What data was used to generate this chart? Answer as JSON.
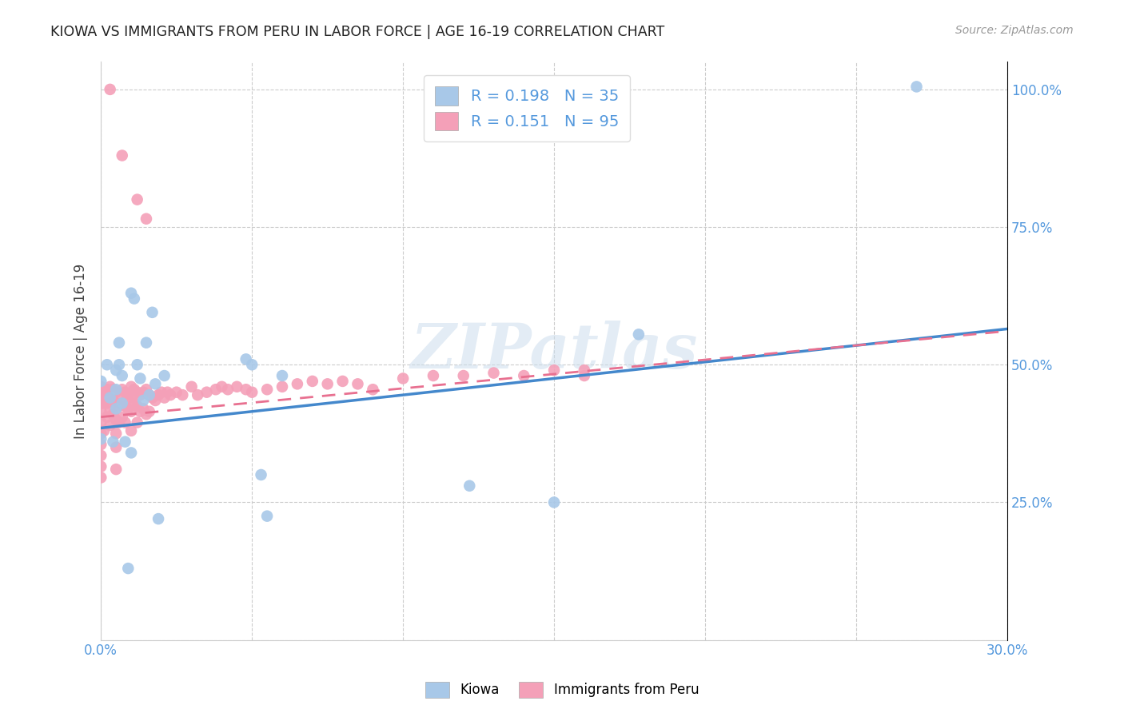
{
  "title": "KIOWA VS IMMIGRANTS FROM PERU IN LABOR FORCE | AGE 16-19 CORRELATION CHART",
  "source": "Source: ZipAtlas.com",
  "ylabel": "In Labor Force | Age 16-19",
  "xlim": [
    0.0,
    0.3
  ],
  "ylim": [
    0.0,
    1.05
  ],
  "ytick_positions": [
    0.0,
    0.25,
    0.5,
    0.75,
    1.0
  ],
  "ytick_labels": [
    "",
    "25.0%",
    "50.0%",
    "75.0%",
    "100.0%"
  ],
  "xtick_positions": [
    0.0,
    0.05,
    0.1,
    0.15,
    0.2,
    0.25,
    0.3
  ],
  "xtick_labels": [
    "0.0%",
    "",
    "",
    "",
    "",
    "",
    "30.0%"
  ],
  "watermark": "ZIPatlas",
  "legend_text1": "R = 0.198   N = 35",
  "legend_text2": "R = 0.151   N = 95",
  "color_kiowa": "#a8c8e8",
  "color_peru": "#f4a0b8",
  "line_color_kiowa": "#4488cc",
  "line_color_peru": "#e87090",
  "background_color": "#ffffff",
  "grid_color": "#cccccc",
  "title_color": "#222222",
  "tick_color": "#5599dd",
  "kiowa_x": [
    0.0,
    0.0,
    0.002,
    0.003,
    0.004,
    0.005,
    0.005,
    0.005,
    0.006,
    0.006,
    0.007,
    0.007,
    0.008,
    0.009,
    0.01,
    0.01,
    0.011,
    0.012,
    0.013,
    0.014,
    0.015,
    0.016,
    0.017,
    0.018,
    0.019,
    0.021,
    0.048,
    0.05,
    0.053,
    0.055,
    0.06,
    0.122,
    0.15,
    0.178,
    0.27
  ],
  "kiowa_y": [
    0.47,
    0.365,
    0.5,
    0.44,
    0.36,
    0.49,
    0.455,
    0.42,
    0.54,
    0.5,
    0.48,
    0.43,
    0.36,
    0.13,
    0.63,
    0.34,
    0.62,
    0.5,
    0.475,
    0.435,
    0.54,
    0.445,
    0.595,
    0.465,
    0.22,
    0.48,
    0.51,
    0.5,
    0.3,
    0.225,
    0.48,
    0.28,
    0.25,
    0.555,
    1.005
  ],
  "peru_x": [
    0.0,
    0.0,
    0.0,
    0.0,
    0.0,
    0.0,
    0.0,
    0.0,
    0.0,
    0.0,
    0.001,
    0.001,
    0.001,
    0.002,
    0.002,
    0.002,
    0.003,
    0.003,
    0.003,
    0.003,
    0.004,
    0.004,
    0.004,
    0.005,
    0.005,
    0.005,
    0.005,
    0.005,
    0.005,
    0.006,
    0.006,
    0.006,
    0.007,
    0.007,
    0.007,
    0.008,
    0.008,
    0.008,
    0.009,
    0.009,
    0.01,
    0.01,
    0.01,
    0.01,
    0.011,
    0.011,
    0.012,
    0.012,
    0.012,
    0.013,
    0.013,
    0.014,
    0.014,
    0.015,
    0.015,
    0.016,
    0.016,
    0.017,
    0.018,
    0.019,
    0.02,
    0.021,
    0.022,
    0.023,
    0.025,
    0.027,
    0.03,
    0.032,
    0.035,
    0.038,
    0.04,
    0.042,
    0.045,
    0.048,
    0.05,
    0.055,
    0.06,
    0.065,
    0.07,
    0.075,
    0.08,
    0.085,
    0.09,
    0.1,
    0.11,
    0.12,
    0.13,
    0.14,
    0.15,
    0.16,
    0.003,
    0.007,
    0.012,
    0.015,
    0.16
  ],
  "peru_y": [
    0.46,
    0.445,
    0.43,
    0.415,
    0.395,
    0.375,
    0.355,
    0.335,
    0.315,
    0.295,
    0.45,
    0.43,
    0.38,
    0.455,
    0.43,
    0.405,
    0.46,
    0.44,
    0.415,
    0.39,
    0.455,
    0.435,
    0.41,
    0.45,
    0.43,
    0.4,
    0.375,
    0.35,
    0.31,
    0.445,
    0.425,
    0.395,
    0.455,
    0.43,
    0.405,
    0.45,
    0.425,
    0.395,
    0.445,
    0.42,
    0.46,
    0.44,
    0.415,
    0.38,
    0.455,
    0.43,
    0.45,
    0.425,
    0.395,
    0.445,
    0.415,
    0.45,
    0.42,
    0.455,
    0.41,
    0.445,
    0.415,
    0.44,
    0.435,
    0.445,
    0.45,
    0.44,
    0.45,
    0.445,
    0.45,
    0.445,
    0.46,
    0.445,
    0.45,
    0.455,
    0.46,
    0.455,
    0.46,
    0.455,
    0.45,
    0.455,
    0.46,
    0.465,
    0.47,
    0.465,
    0.47,
    0.465,
    0.455,
    0.475,
    0.48,
    0.48,
    0.485,
    0.48,
    0.49,
    0.49,
    1.0,
    0.88,
    0.8,
    0.765,
    0.48
  ]
}
